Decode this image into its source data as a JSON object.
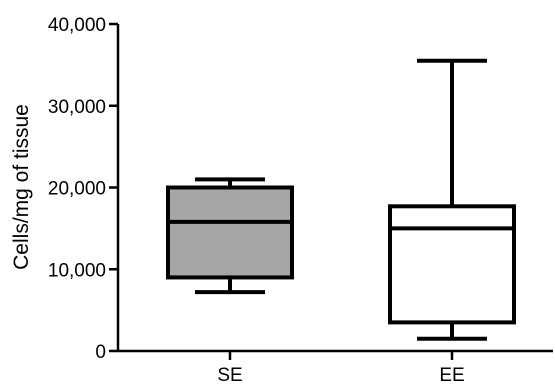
{
  "chart_data": {
    "type": "boxplot",
    "title": "",
    "xlabel": "",
    "ylabel": "Cells/mg of tissue",
    "ylim": [
      0,
      40000
    ],
    "yticks": [
      {
        "value": 0,
        "label": "0"
      },
      {
        "value": 10000,
        "label": "10,000"
      },
      {
        "value": 20000,
        "label": "20,000"
      },
      {
        "value": 30000,
        "label": "30,000"
      },
      {
        "value": 40000,
        "label": "40,000"
      }
    ],
    "categories": [
      "SE",
      "EE"
    ],
    "boxes": [
      {
        "category": "SE",
        "min": 7200,
        "q1": 9000,
        "median": 15800,
        "q3": 20000,
        "max": 21000,
        "fill": "#a6a6a6"
      },
      {
        "category": "EE",
        "min": 1500,
        "q1": 3500,
        "median": 15000,
        "q3": 17700,
        "max": 35500,
        "fill": "#ffffff"
      }
    ],
    "grid": false,
    "legend": "none"
  }
}
